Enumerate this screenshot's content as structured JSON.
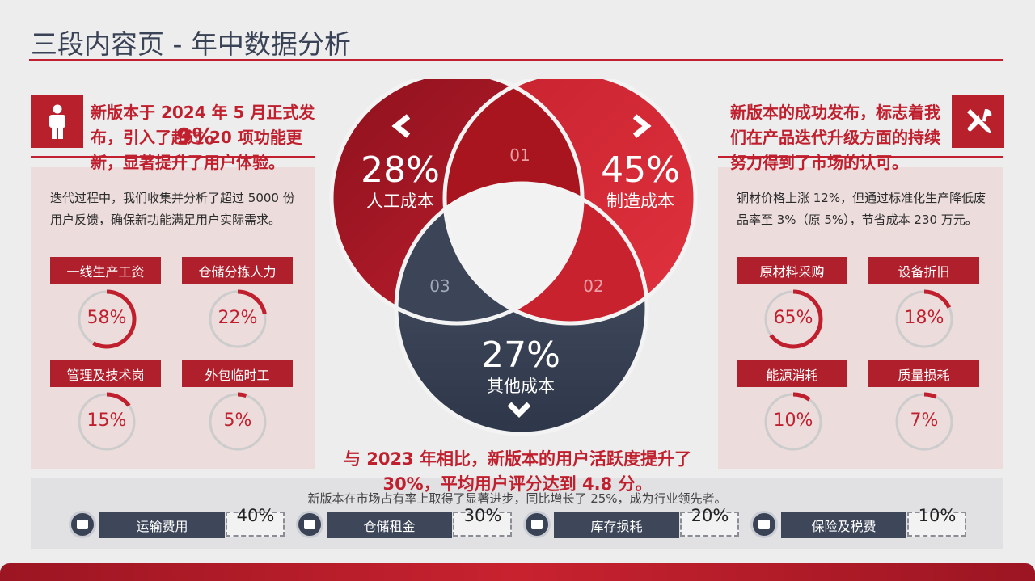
{
  "title": "三段内容页 - 年中数据分析",
  "left": {
    "callout": "新版本于 2024 年 5 月正式发布，引入了超过 20 项功能更新，显著提升了用户体验。",
    "overlay_pct": "9%",
    "desc": "迭代过程中，我们收集并分析了超过 5000 份用户反馈，确保新功能满足用户实际需求。",
    "items": [
      {
        "label": "一线生产工资",
        "value": 58
      },
      {
        "label": "仓储分拣人力",
        "value": 22
      },
      {
        "label": "管理及技术岗",
        "value": 15
      },
      {
        "label": "外包临时工",
        "value": 5
      }
    ]
  },
  "right": {
    "callout": "新版本的成功发布，标志着我们在产品迭代升级方面的持续努力得到了市场的认可。",
    "desc": "铜材价格上涨 12%，但通过标准化生产降低废品率至 3%（原 5%），节省成本 230 万元。",
    "items": [
      {
        "label": "原材料采购",
        "value": 65
      },
      {
        "label": "设备折旧",
        "value": 18
      },
      {
        "label": "能源消耗",
        "value": 10
      },
      {
        "label": "质量损耗",
        "value": 7
      }
    ]
  },
  "venn": {
    "c1": {
      "pct": "28%",
      "label": "人工成本",
      "num": "01"
    },
    "c2": {
      "pct": "45%",
      "label": "制造成本",
      "num": "02"
    },
    "c3": {
      "pct": "27%",
      "label": "其他成本",
      "num": "03"
    }
  },
  "center_text": "与 2023 年相比，新版本的用户活跃度提升了 30%，平均用户评分达到 4.8 分。",
  "bottom": {
    "text": "新版本在市场占有率上取得了显著进步，同比增长了 25%，成为行业领先者。",
    "items": [
      {
        "label": "运输费用",
        "pct": "40%"
      },
      {
        "label": "仓储租金",
        "pct": "30%"
      },
      {
        "label": "库存损耗",
        "pct": "20%"
      },
      {
        "label": "保险及税费",
        "pct": "10%"
      }
    ]
  },
  "colors": {
    "accent": "#c2202f",
    "dark": "#3e4659"
  }
}
